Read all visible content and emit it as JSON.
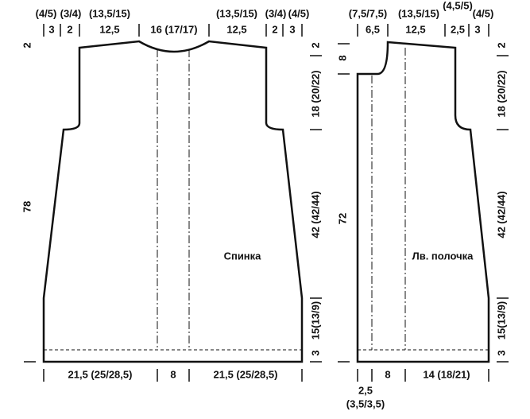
{
  "back": {
    "label": "Спинка",
    "top_row1": [
      "(4/5)",
      "(3/4)",
      "(13,5/15)",
      "(13,5/15)",
      "(3/4)",
      "(4/5)"
    ],
    "top_row2": [
      "3",
      "2",
      "12,5",
      "16 (17/17)",
      "12,5",
      "2",
      "3"
    ],
    "left": [
      "2",
      "78"
    ],
    "right": [
      "2",
      "18 (20/22)",
      "42 (42/44)",
      "15(13/9)",
      "3"
    ],
    "bottom": [
      "21,5 (25/28,5)",
      "8",
      "21,5 (25/28,5)"
    ]
  },
  "front": {
    "label": "Лв. полочка",
    "top_row1": [
      "(7,5/7,5)",
      "(13,5/15)",
      "(4,5/5)",
      "(4/5)"
    ],
    "top_row2": [
      "6,5",
      "12,5",
      "2,5",
      "3"
    ],
    "left": [
      "8",
      "72"
    ],
    "right": [
      "2",
      "18 (20/22)",
      "42 (42/44)",
      "15(13/9)",
      "3"
    ],
    "bottom": [
      "8",
      "14 (18/21)",
      "2,5",
      "(3,5/3,5)"
    ]
  }
}
